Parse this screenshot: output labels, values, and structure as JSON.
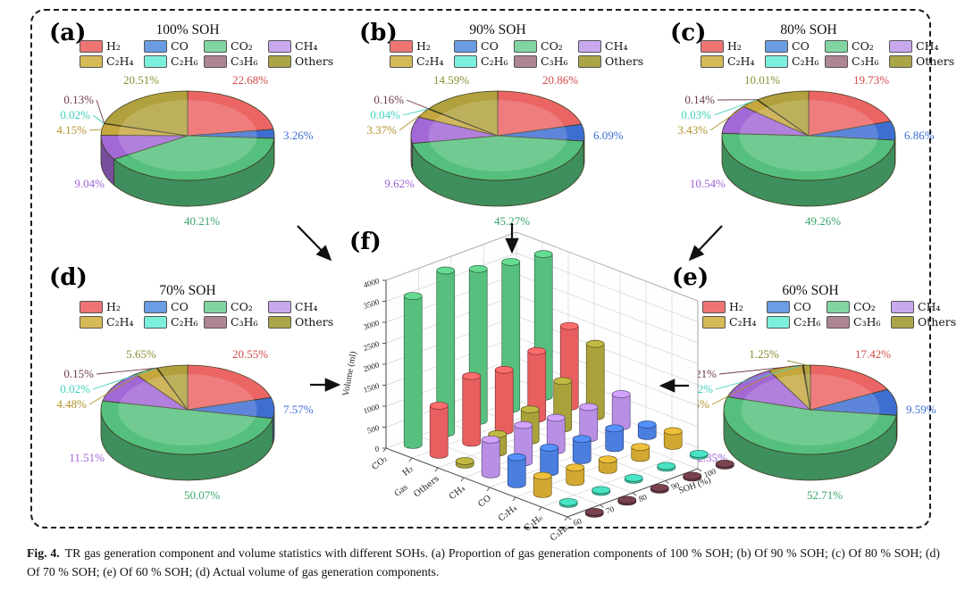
{
  "figure_caption": {
    "label": "Fig. 4.",
    "text": "TR gas generation component and volume statistics with different SOHs. (a) Proportion of gas generation components of 100 % SOH; (b) Of 90 % SOH; (c) Of 80 % SOH; (d) Of 70 % SOH; (e) Of 60 % SOH; (d) Actual volume of gas generation components."
  },
  "legend_labels": [
    "H₂",
    "CO",
    "CO₂",
    "CH₄",
    "C₂H₄",
    "C₂H₆",
    "C₃H₆",
    "Others"
  ],
  "colors": {
    "legend_swatch": [
      "#ee7474",
      "#699ce2",
      "#82d5a3",
      "#c9a9ee",
      "#d6ba57",
      "#7df0dd",
      "#ad8594",
      "#aaa648"
    ],
    "pie_fill": [
      "#ec6565",
      "#3e6ed2",
      "#55c07e",
      "#a168d6",
      "#c6a73e",
      "#66e3cf",
      "#7a4a52",
      "#b1a13e"
    ],
    "label_text": [
      "#d24848",
      "#3b6cd4",
      "#3aa56b",
      "#9f62d8",
      "#b2922b",
      "#3ed0bd",
      "#6d3a44",
      "#8b8b2f"
    ],
    "bar_fill": {
      "CO₂": "#58c07f",
      "H₂": "#e85f5f",
      "Others": "#a9a23b",
      "CH₄": "#b98fe6",
      "CO": "#4a7fe0",
      "C₂H₄": "#d1a832",
      "C₂H₆": "#3fc8ab",
      "C₃H₆": "#6b3a45"
    }
  },
  "chart_data": [
    {
      "type": "pie",
      "panel_label": "(a)",
      "title": "100% SOH",
      "unit": "%",
      "categories": [
        "H₂",
        "CO",
        "CO₂",
        "CH₄",
        "C₂H₄",
        "C₂H₆",
        "C₃H₆",
        "Others"
      ],
      "values": [
        22.68,
        3.26,
        40.21,
        9.04,
        4.15,
        0.02,
        0.13,
        20.51
      ]
    },
    {
      "type": "pie",
      "panel_label": "(b)",
      "title": "90% SOH",
      "unit": "%",
      "categories": [
        "H₂",
        "CO",
        "CO₂",
        "CH₄",
        "C₂H₄",
        "C₂H₆",
        "C₃H₆",
        "Others"
      ],
      "values": [
        20.86,
        6.09,
        45.27,
        9.62,
        3.37,
        0.04,
        0.16,
        14.59
      ]
    },
    {
      "type": "pie",
      "panel_label": "(c)",
      "title": "80% SOH",
      "unit": "%",
      "categories": [
        "H₂",
        "CO",
        "CO₂",
        "CH₄",
        "C₂H₄",
        "C₂H₆",
        "C₃H₆",
        "Others"
      ],
      "values": [
        19.73,
        6.86,
        49.26,
        10.54,
        3.43,
        0.03,
        0.14,
        10.01
      ]
    },
    {
      "type": "pie",
      "panel_label": "(d)",
      "title": "70% SOH",
      "unit": "%",
      "categories": [
        "H₂",
        "CO",
        "CO₂",
        "CH₄",
        "C₂H₄",
        "C₂H₆",
        "C₃H₆",
        "Others"
      ],
      "values": [
        20.55,
        7.57,
        50.07,
        11.51,
        4.48,
        0.02,
        0.15,
        5.65
      ]
    },
    {
      "type": "pie",
      "panel_label": "(e)",
      "title": "60% SOH",
      "unit": "%",
      "categories": [
        "H₂",
        "CO",
        "CO₂",
        "CH₄",
        "C₂H₄",
        "C₂H₆",
        "C₃H₆",
        "Others"
      ],
      "values": [
        17.42,
        9.59,
        52.71,
        12.35,
        6.45,
        0.02,
        0.21,
        1.25
      ]
    },
    {
      "type": "bar3d",
      "panel_label": "(f)",
      "zlabel": "Volume (ml)",
      "xlabel": "Gas",
      "ylabel": "SOH (%)",
      "zlim": [
        0,
        4000
      ],
      "ztick": 500,
      "x_categories": [
        "CO₂",
        "H₂",
        "Others",
        "CH₄",
        "CO",
        "C₂H₄",
        "C₂H₆",
        "C₃H₆"
      ],
      "y_categories": [
        "60",
        "70",
        "80",
        "90",
        "100"
      ],
      "series": [
        {
          "name": "CO₂",
          "values": [
            3550,
            3870,
            3620,
            3500,
            3400
          ]
        },
        {
          "name": "H₂",
          "values": [
            1170,
            1590,
            1450,
            1610,
            1920
          ]
        },
        {
          "name": "Others",
          "values": [
            85,
            440,
            740,
            1130,
            1730
          ]
        },
        {
          "name": "CH₄",
          "values": [
            830,
            890,
            775,
            745,
            765
          ]
        },
        {
          "name": "CO",
          "values": [
            645,
            585,
            505,
            470,
            275
          ]
        },
        {
          "name": "C₂H₄",
          "values": [
            435,
            345,
            250,
            260,
            350
          ]
        },
        {
          "name": "C₂H₆",
          "values": [
            2,
            2,
            2,
            3,
            2
          ]
        },
        {
          "name": "C₃H₆",
          "values": [
            14,
            12,
            10,
            12,
            11
          ]
        }
      ]
    }
  ]
}
